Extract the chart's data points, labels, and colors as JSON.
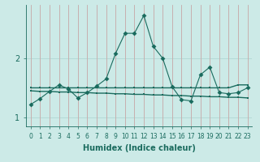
{
  "xlabel": "Humidex (Indice chaleur)",
  "background_color": "#cceae7",
  "grid_color": "#aad4d0",
  "line_color": "#1a6b5e",
  "x_data": [
    0,
    1,
    2,
    3,
    4,
    5,
    6,
    7,
    8,
    9,
    10,
    11,
    12,
    13,
    14,
    15,
    16,
    17,
    18,
    19,
    20,
    21,
    22,
    23
  ],
  "y_main": [
    1.22,
    1.32,
    1.44,
    1.55,
    1.48,
    1.33,
    1.42,
    1.53,
    1.65,
    2.08,
    2.42,
    2.42,
    2.72,
    2.2,
    2.0,
    1.52,
    1.3,
    1.28,
    1.72,
    1.85,
    1.42,
    1.4,
    1.42,
    1.5
  ],
  "y_line1": [
    1.5,
    1.5,
    1.5,
    1.5,
    1.5,
    1.5,
    1.5,
    1.5,
    1.5,
    1.5,
    1.5,
    1.5,
    1.5,
    1.5,
    1.5,
    1.5,
    1.5,
    1.5,
    1.5,
    1.5,
    1.5,
    1.5,
    1.55,
    1.55
  ],
  "y_line2": [
    1.45,
    1.44,
    1.44,
    1.43,
    1.43,
    1.42,
    1.42,
    1.41,
    1.41,
    1.4,
    1.4,
    1.39,
    1.39,
    1.38,
    1.38,
    1.37,
    1.37,
    1.36,
    1.36,
    1.35,
    1.35,
    1.34,
    1.34,
    1.33
  ],
  "ylim": [
    0.85,
    2.9
  ],
  "xlim": [
    -0.5,
    23.5
  ],
  "yticks": [
    1,
    2
  ],
  "xticks": [
    0,
    1,
    2,
    3,
    4,
    5,
    6,
    7,
    8,
    9,
    10,
    11,
    12,
    13,
    14,
    15,
    16,
    17,
    18,
    19,
    20,
    21,
    22,
    23
  ]
}
